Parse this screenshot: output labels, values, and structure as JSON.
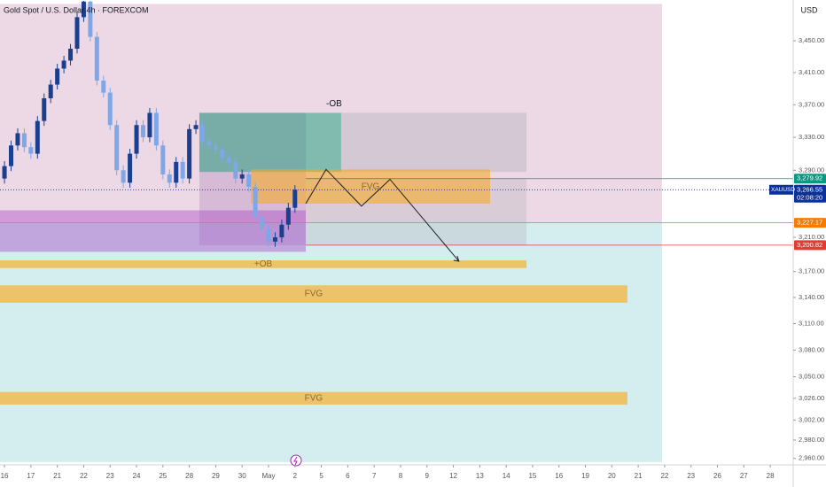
{
  "header": {
    "title": "Gold Spot / U.S. Dollar 4h · FOREXCOM",
    "currency": "USD",
    "symbol": "XAUUSD",
    "countdown": "02:08:20"
  },
  "chart_data": {
    "type": "candlestick",
    "log_scale": true,
    "xlim": [
      -0.17,
      29.87
    ],
    "ylim": [
      2953,
      3502
    ],
    "xticks": [
      {
        "value": 0,
        "label": "16"
      },
      {
        "value": 1,
        "label": "17"
      },
      {
        "value": 2,
        "label": "21"
      },
      {
        "value": 3,
        "label": "22"
      },
      {
        "value": 4,
        "label": "23"
      },
      {
        "value": 5,
        "label": "24"
      },
      {
        "value": 6,
        "label": "25"
      },
      {
        "value": 7,
        "label": "28"
      },
      {
        "value": 8,
        "label": "29"
      },
      {
        "value": 9,
        "label": "30"
      },
      {
        "value": 10,
        "label": "May"
      },
      {
        "value": 11,
        "label": "2"
      },
      {
        "value": 12,
        "label": "5"
      },
      {
        "value": 13,
        "label": "6"
      },
      {
        "value": 14,
        "label": "7"
      },
      {
        "value": 15,
        "label": "8"
      },
      {
        "value": 16,
        "label": "9"
      },
      {
        "value": 17,
        "label": "12"
      },
      {
        "value": 18,
        "label": "13"
      },
      {
        "value": 19,
        "label": "14"
      },
      {
        "value": 20,
        "label": "15"
      },
      {
        "value": 21,
        "label": "16"
      },
      {
        "value": 22,
        "label": "19"
      },
      {
        "value": 23,
        "label": "20"
      },
      {
        "value": 24,
        "label": "21"
      },
      {
        "value": 25,
        "label": "22"
      },
      {
        "value": 26,
        "label": "23"
      },
      {
        "value": 27,
        "label": "26"
      },
      {
        "value": 28,
        "label": "27"
      },
      {
        "value": 29,
        "label": "28"
      }
    ],
    "yticks": [
      {
        "value": 3450,
        "label": "3,450.00"
      },
      {
        "value": 3410,
        "label": "3,410.00"
      },
      {
        "value": 3370,
        "label": "3,370.00"
      },
      {
        "value": 3330,
        "label": "3,330.00"
      },
      {
        "value": 3290,
        "label": "3,290.00"
      },
      {
        "value": 3210,
        "label": "3,210.00"
      },
      {
        "value": 3170,
        "label": "3,170.00"
      },
      {
        "value": 3140,
        "label": "3,140.00"
      },
      {
        "value": 3110,
        "label": "3,110.00"
      },
      {
        "value": 3080,
        "label": "3,080.00"
      },
      {
        "value": 3050,
        "label": "3,050.00"
      },
      {
        "value": 3026,
        "label": "3,026.00"
      },
      {
        "value": 3002,
        "label": "3,002.00"
      },
      {
        "value": 2980,
        "label": "2,980.00"
      },
      {
        "value": 2960,
        "label": "2,960.00"
      }
    ],
    "up_color": "#1a3f8f",
    "down_color": "#7fa7e8",
    "x": [
      0,
      0.25,
      0.5,
      0.75,
      1,
      1.25,
      1.5,
      1.75,
      2,
      2.25,
      2.5,
      2.75,
      3,
      3.25,
      3.5,
      3.75,
      4,
      4.25,
      4.5,
      4.75,
      5,
      5.25,
      5.5,
      5.75,
      6,
      6.25,
      6.5,
      6.75,
      7,
      7.25,
      7.5,
      7.75,
      8,
      8.25,
      8.5,
      8.75,
      9,
      9.25,
      9.5,
      9.75,
      10,
      10.25,
      10.5,
      10.75,
      11
    ],
    "open": [
      3280,
      3295,
      3320,
      3335,
      3318,
      3310,
      3350,
      3378,
      3395,
      3415,
      3425,
      3440,
      3480,
      3500,
      3455,
      3400,
      3385,
      3345,
      3290,
      3275,
      3310,
      3345,
      3330,
      3360,
      3320,
      3285,
      3275,
      3300,
      3280,
      3340,
      3345,
      3325,
      3320,
      3315,
      3305,
      3300,
      3280,
      3285,
      3270,
      3235,
      3220,
      3205,
      3210,
      3225,
      3245
    ],
    "high": [
      3301,
      3326,
      3341,
      3341,
      3324,
      3356,
      3384,
      3401,
      3421,
      3431,
      3446,
      3486,
      3501,
      3501,
      3461,
      3406,
      3391,
      3351,
      3296,
      3316,
      3351,
      3351,
      3366,
      3366,
      3326,
      3291,
      3306,
      3306,
      3346,
      3351,
      3351,
      3331,
      3326,
      3321,
      3311,
      3306,
      3291,
      3291,
      3276,
      3241,
      3226,
      3216,
      3231,
      3251,
      3272
    ],
    "low": [
      3274,
      3289,
      3314,
      3312,
      3304,
      3304,
      3344,
      3372,
      3389,
      3409,
      3419,
      3434,
      3474,
      3449,
      3394,
      3379,
      3339,
      3284,
      3269,
      3269,
      3304,
      3324,
      3324,
      3314,
      3279,
      3269,
      3269,
      3274,
      3274,
      3334,
      3319,
      3314,
      3309,
      3299,
      3294,
      3274,
      3274,
      3264,
      3229,
      3214,
      3199,
      3199,
      3204,
      3219,
      3239
    ],
    "close": [
      3295,
      3320,
      3335,
      3318,
      3310,
      3350,
      3378,
      3395,
      3415,
      3425,
      3440,
      3480,
      3500,
      3455,
      3400,
      3385,
      3345,
      3290,
      3275,
      3310,
      3345,
      3330,
      3360,
      3320,
      3285,
      3275,
      3300,
      3280,
      3340,
      3345,
      3325,
      3320,
      3315,
      3305,
      3300,
      3280,
      3285,
      3270,
      3235,
      3220,
      3205,
      3210,
      3225,
      3245,
      3266.55
    ],
    "zones": [
      {
        "x0": -0.17,
        "x1": 24.9,
        "top": 3497,
        "bottom": 3227.17,
        "color": "rgba(190,120,160,0.28)"
      },
      {
        "x0": -0.17,
        "x1": 24.9,
        "top": 3227.17,
        "bottom": 2956,
        "color": "rgba(120,200,205,0.32)"
      },
      {
        "x0": 7.38,
        "x1": 11.41,
        "top": 3360,
        "bottom": 3200.82,
        "color": "rgba(150,100,170,0.25)"
      },
      {
        "x0": 7.38,
        "x1": 12.75,
        "top": 3360,
        "bottom": 3288,
        "color": "rgba(40,160,130,0.55)",
        "label": "-OB"
      },
      {
        "x0": 12.75,
        "x1": 19.77,
        "top": 3360,
        "bottom": 3288,
        "color": "rgba(180,180,190,0.45)"
      },
      {
        "x0": 11.41,
        "x1": 19.77,
        "top": 3279.92,
        "bottom": 3200.82,
        "color": "rgba(180,180,190,0.35)"
      },
      {
        "x0": -0.17,
        "x1": 11.41,
        "top": 3242,
        "bottom": 3193,
        "color": "rgba(170,80,200,0.45)"
      },
      {
        "x0": 9.33,
        "x1": 18.39,
        "top": 3291,
        "bottom": 3250,
        "color": "rgba(245,170,40,0.6)",
        "label": "FVG"
      },
      {
        "x0": -0.17,
        "x1": 19.77,
        "top": 3183,
        "bottom": 3174,
        "color": "rgba(245,180,60,0.75)",
        "label": "+OB"
      },
      {
        "x0": -0.17,
        "x1": 23.59,
        "top": 3154,
        "bottom": 3134,
        "color": "rgba(245,180,60,0.75)",
        "label": "FVG"
      },
      {
        "x0": -0.17,
        "x1": 23.59,
        "top": 3033,
        "bottom": 3019,
        "color": "rgba(245,180,60,0.75)",
        "label": "FVG"
      }
    ],
    "projection": {
      "x": [
        11.41,
        12.18,
        13.52,
        14.6,
        17.21
      ],
      "y": [
        3250,
        3291,
        3247,
        3279,
        3182
      ]
    },
    "price_labels": [
      {
        "value": 3279.92,
        "label": "3,279.92",
        "color": "#089981",
        "from": 11.41
      },
      {
        "value": 3266.55,
        "label": "3,266.55",
        "color": "#0c3299",
        "from": -0.17
      },
      {
        "value": 3227.17,
        "label": "3,227.17",
        "color": "#f57c00",
        "from": -0.17
      },
      {
        "value": 3200.82,
        "label": "3,200.82",
        "color": "#e53935",
        "from": 11.41
      }
    ]
  }
}
